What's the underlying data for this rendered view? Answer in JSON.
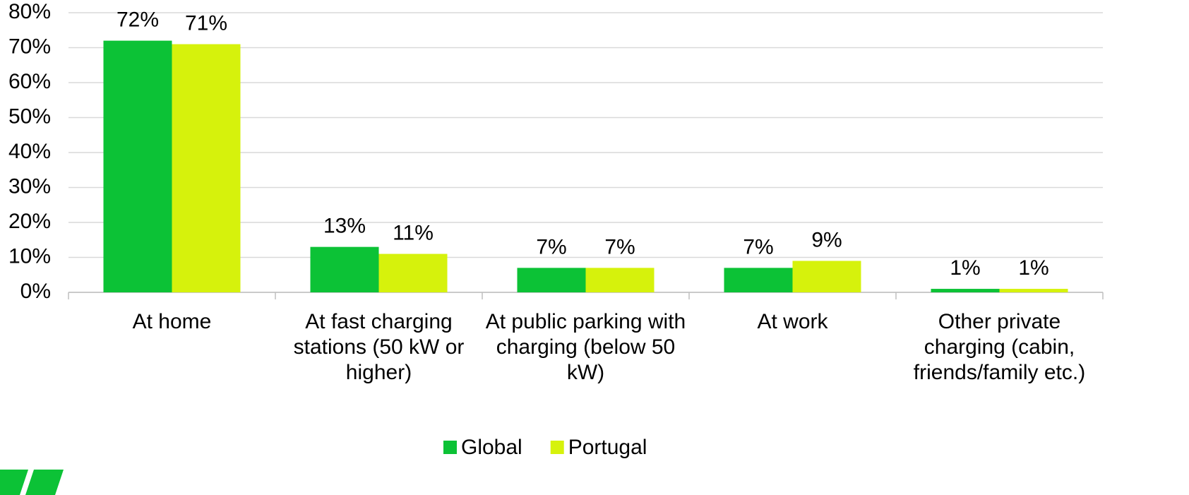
{
  "chart_data": {
    "type": "bar",
    "categories": [
      "At home",
      "At fast charging stations (50 kW or higher)",
      "At public parking with charging (below 50 kW)",
      "At work",
      "Other private charging (cabin, friends/family etc.)"
    ],
    "series": [
      {
        "name": "Global",
        "color": "#0cc236",
        "values": [
          72,
          13,
          7,
          7,
          1
        ],
        "value_labels": [
          "72%",
          "13%",
          "7%",
          "7%",
          "1%"
        ]
      },
      {
        "name": "Portugal",
        "color": "#d6f20c",
        "values": [
          71,
          11,
          7,
          9,
          1
        ],
        "value_labels": [
          "71%",
          "11%",
          "7%",
          "9%",
          "1%"
        ]
      }
    ],
    "ylim": [
      0,
      80
    ],
    "yticks": [
      {
        "value": 0,
        "label": "0%"
      },
      {
        "value": 10,
        "label": "10%"
      },
      {
        "value": 20,
        "label": "20%"
      },
      {
        "value": 30,
        "label": "30%"
      },
      {
        "value": 40,
        "label": "40%"
      },
      {
        "value": 50,
        "label": "50%"
      },
      {
        "value": 60,
        "label": "60%"
      },
      {
        "value": 70,
        "label": "70%"
      },
      {
        "value": 80,
        "label": "80%"
      }
    ],
    "grid": true,
    "legend": "bottom"
  }
}
